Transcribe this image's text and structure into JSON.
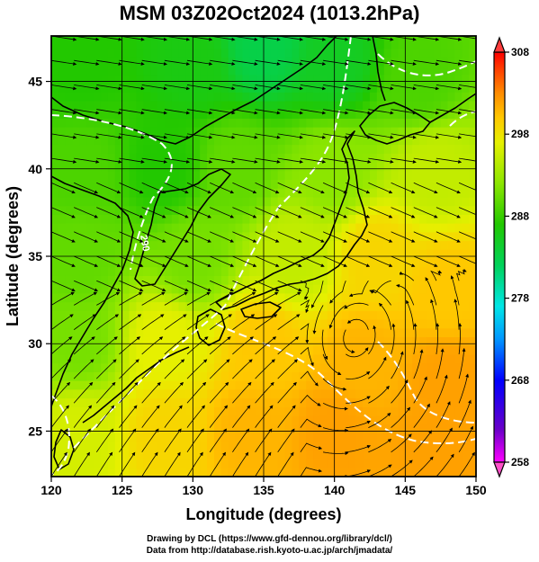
{
  "title": "MSM 03Z02Oct2024 (1013.2hPa)",
  "xlabel": "Longitude (degrees)",
  "ylabel": "Latitude (degrees)",
  "credits": [
    "Drawing by DCL (https://www.gfd-dennou.org/library/dcl/)",
    "Data from http://database.rish.kyoto-u.ac.jp/arch/jmadata/"
  ],
  "chart_data": {
    "type": "heatmap",
    "title": "MSM 03Z02Oct2024 (1013.2hPa)",
    "xlabel": "Longitude (degrees)",
    "ylabel": "Latitude (degrees)",
    "xlim": [
      120,
      150
    ],
    "ylim": [
      22.4,
      47.6
    ],
    "xticks": [
      "120",
      "125",
      "130",
      "135",
      "140",
      "145",
      "150"
    ],
    "yticks": [
      "25",
      "30",
      "35",
      "40",
      "45"
    ],
    "grid": true,
    "colorbar": {
      "range": [
        258,
        308
      ],
      "ticks": [
        "258",
        "268",
        "278",
        "288",
        "298",
        "308"
      ],
      "colors": [
        "#ff00ff",
        "#6a00c8",
        "#0000ff",
        "#0096ff",
        "#00e6e6",
        "#00d25a",
        "#22c800",
        "#8ce600",
        "#e6f000",
        "#ffc800",
        "#ff8c00",
        "#ff3c00",
        "#ff0000"
      ]
    },
    "contour_label": "290",
    "field_samples": [
      {
        "lon": 122,
        "lat": 46,
        "value": 287
      },
      {
        "lon": 130,
        "lat": 46,
        "value": 286
      },
      {
        "lon": 135,
        "lat": 47,
        "value": 283
      },
      {
        "lon": 140,
        "lat": 46,
        "value": 285
      },
      {
        "lon": 146,
        "lat": 45,
        "value": 289
      },
      {
        "lon": 122,
        "lat": 40,
        "value": 289
      },
      {
        "lon": 128,
        "lat": 40,
        "value": 287
      },
      {
        "lon": 133,
        "lat": 40,
        "value": 290
      },
      {
        "lon": 140,
        "lat": 40,
        "value": 292
      },
      {
        "lon": 147,
        "lat": 40,
        "value": 295
      },
      {
        "lon": 122,
        "lat": 35,
        "value": 290
      },
      {
        "lon": 130,
        "lat": 35,
        "value": 291
      },
      {
        "lon": 137,
        "lat": 35,
        "value": 295
      },
      {
        "lon": 143,
        "lat": 35,
        "value": 299
      },
      {
        "lon": 148,
        "lat": 33,
        "value": 300
      },
      {
        "lon": 122,
        "lat": 30,
        "value": 291
      },
      {
        "lon": 128,
        "lat": 30,
        "value": 297
      },
      {
        "lon": 135,
        "lat": 30,
        "value": 300
      },
      {
        "lon": 142,
        "lat": 29,
        "value": 301
      },
      {
        "lon": 148,
        "lat": 28,
        "value": 302
      },
      {
        "lon": 122,
        "lat": 25,
        "value": 296
      },
      {
        "lon": 128,
        "lat": 25,
        "value": 299
      },
      {
        "lon": 134,
        "lat": 25,
        "value": 301
      },
      {
        "lon": 140,
        "lat": 25,
        "value": 302
      },
      {
        "lon": 147,
        "lat": 24,
        "value": 302
      }
    ]
  }
}
